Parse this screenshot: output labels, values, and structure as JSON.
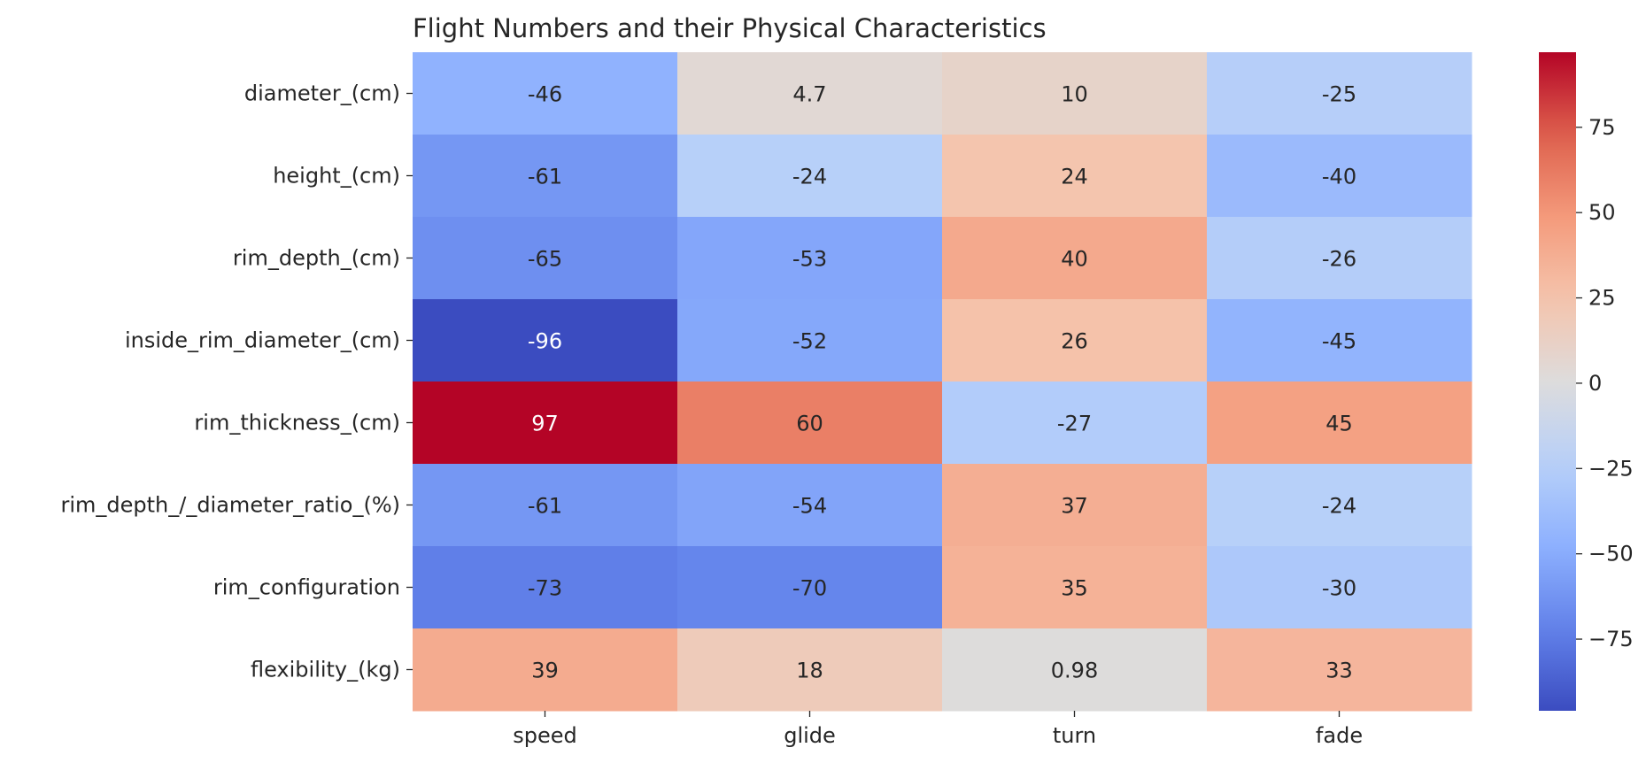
{
  "chart_data": {
    "type": "heatmap",
    "title": "Flight Numbers and their Physical Characteristics",
    "xlabel": "",
    "ylabel": "",
    "columns": [
      "speed",
      "glide",
      "turn",
      "fade"
    ],
    "rows": [
      "diameter_(cm)",
      "height_(cm)",
      "rim_depth_(cm)",
      "inside_rim_diameter_(cm)",
      "rim_thickness_(cm)",
      "rim_depth_/_diameter_ratio_(%)",
      "rim_configuration",
      "flexibility_(kg)"
    ],
    "values": [
      [
        -46,
        4.7,
        10,
        -25
      ],
      [
        -61,
        -24,
        24,
        -40
      ],
      [
        -65,
        -53,
        40,
        -26
      ],
      [
        -96,
        -52,
        26,
        -45
      ],
      [
        97,
        60,
        -27,
        45
      ],
      [
        -61,
        -54,
        37,
        -24
      ],
      [
        -73,
        -70,
        35,
        -30
      ],
      [
        39,
        18,
        0.98,
        33
      ]
    ],
    "value_labels": [
      [
        "-46",
        "4.7",
        "10",
        "-25"
      ],
      [
        "-61",
        "-24",
        "24",
        "-40"
      ],
      [
        "-65",
        "-53",
        "40",
        "-26"
      ],
      [
        "-96",
        "-52",
        "26",
        "-45"
      ],
      [
        "97",
        "60",
        "-27",
        "45"
      ],
      [
        "-61",
        "-54",
        "37",
        "-24"
      ],
      [
        "-73",
        "-70",
        "35",
        "-30"
      ],
      [
        "39",
        "18",
        "0.98",
        "33"
      ]
    ],
    "colormap": "coolwarm",
    "vmin": -96,
    "vmax": 97,
    "colorbar_ticks": [
      75,
      50,
      25,
      0,
      -25,
      -50,
      -75
    ],
    "colorbar_tick_labels": [
      "75",
      "50",
      "25",
      "0",
      "−25",
      "−50",
      "−75"
    ],
    "grid": false,
    "legend": "colorbar-right"
  }
}
